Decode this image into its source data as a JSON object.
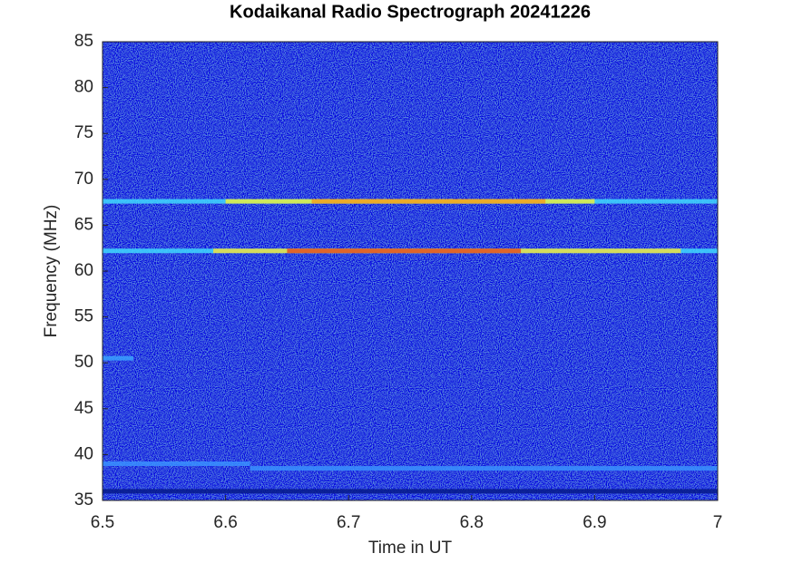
{
  "chart_data": {
    "type": "heatmap",
    "title": "Kodaikanal Radio Spectrograph  20241226",
    "x_label": "Time in UT",
    "y_label": "Frequency (MHz)",
    "xlim": [
      6.5,
      7
    ],
    "xticks": [
      6.5,
      6.6,
      6.7,
      6.8,
      6.9,
      7
    ],
    "ylim": [
      35,
      85
    ],
    "yticks": [
      35,
      40,
      45,
      50,
      55,
      60,
      65,
      70,
      75,
      80,
      85
    ],
    "background_color": "#0a23b4",
    "bands": [
      {
        "y": 67.6,
        "x": [
          6.5,
          7
        ],
        "color": "#40d8ff"
      },
      {
        "y": 67.6,
        "x": [
          6.6,
          6.9
        ],
        "color": "#e8f040"
      },
      {
        "y": 67.6,
        "x": [
          6.67,
          6.86
        ],
        "color": "#f0a020"
      },
      {
        "y": 62.2,
        "x": [
          6.5,
          7
        ],
        "color": "#40d8ff"
      },
      {
        "y": 62.2,
        "x": [
          6.59,
          6.97
        ],
        "color": "#f0e040"
      },
      {
        "y": 62.2,
        "x": [
          6.65,
          6.84
        ],
        "color": "#e05020"
      },
      {
        "y": 50.5,
        "x": [
          6.5,
          6.525
        ],
        "color": "#3aa0ff"
      },
      {
        "y": 39,
        "x": [
          6.5,
          6.62
        ],
        "color": "#3a90ff"
      },
      {
        "y": 38.5,
        "x": [
          6.62,
          7
        ],
        "color": "#3a90ff"
      },
      {
        "y": 36,
        "x": [
          6.5,
          7
        ],
        "color": "#061a8a"
      }
    ]
  }
}
